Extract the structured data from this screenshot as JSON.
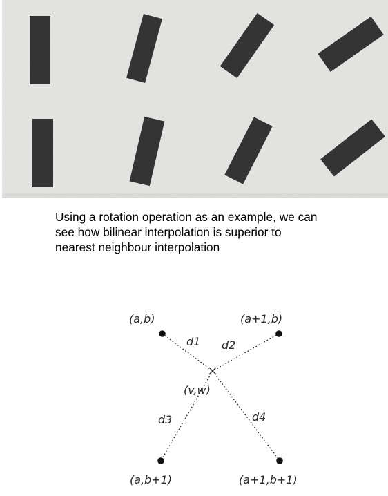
{
  "caption": {
    "lines": [
      "Using a rotation operation as an example, we can",
      "see how bilinear interpolation is superior to",
      "nearest neighbour interpolation"
    ]
  },
  "diagram": {
    "corner_labels": {
      "top_left": "(a,b)",
      "top_right": "(a+1,b)",
      "bottom_left": "(a,b+1)",
      "bottom_right": "(a+1,b+1)"
    },
    "center_label": "(v,w)",
    "distance_labels": {
      "d1": "d1",
      "d2": "d2",
      "d3": "d3",
      "d4": "d4"
    }
  },
  "colors": {
    "photo_background": "#e4e4e2",
    "bar": "#343434",
    "ink": "#111111"
  }
}
